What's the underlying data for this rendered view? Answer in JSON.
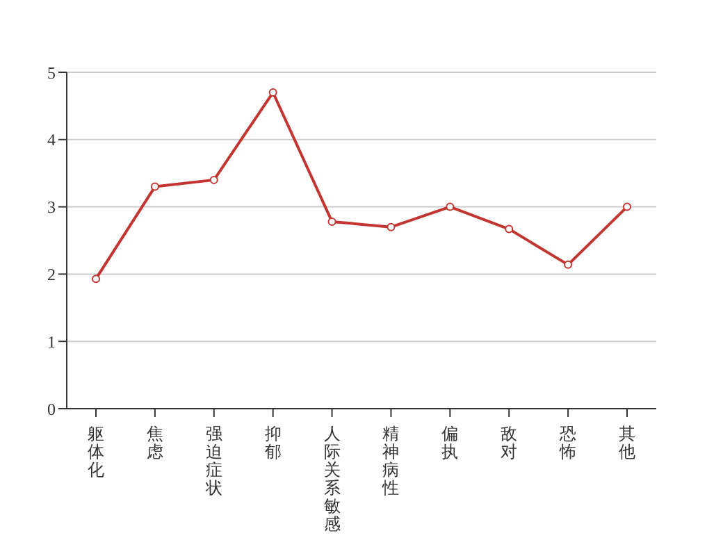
{
  "chart_data": {
    "type": "line",
    "categories": [
      "躯体化",
      "焦虑",
      "强迫症状",
      "抑郁",
      "人际关系敏感",
      "精神病性",
      "偏执",
      "敌对",
      "恐怖",
      "其他"
    ],
    "series": [
      {
        "color": "#c23531",
        "values": [
          1.93,
          3.3,
          3.4,
          4.7,
          2.78,
          2.7,
          3.0,
          2.67,
          2.14,
          3.0
        ]
      }
    ],
    "ylim": [
      0,
      5
    ],
    "yticks": [
      0,
      1,
      2,
      3,
      4,
      5
    ],
    "grid": "y",
    "marker": "circle"
  }
}
